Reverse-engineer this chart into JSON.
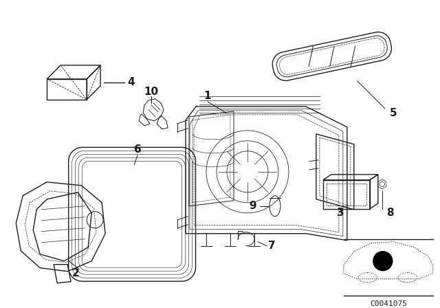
{
  "bg_color": "#ffffff",
  "line_color": "#1a1a1a",
  "diagram_code": "C0041075",
  "fig_w": 6.4,
  "fig_h": 4.48,
  "dpi": 100
}
